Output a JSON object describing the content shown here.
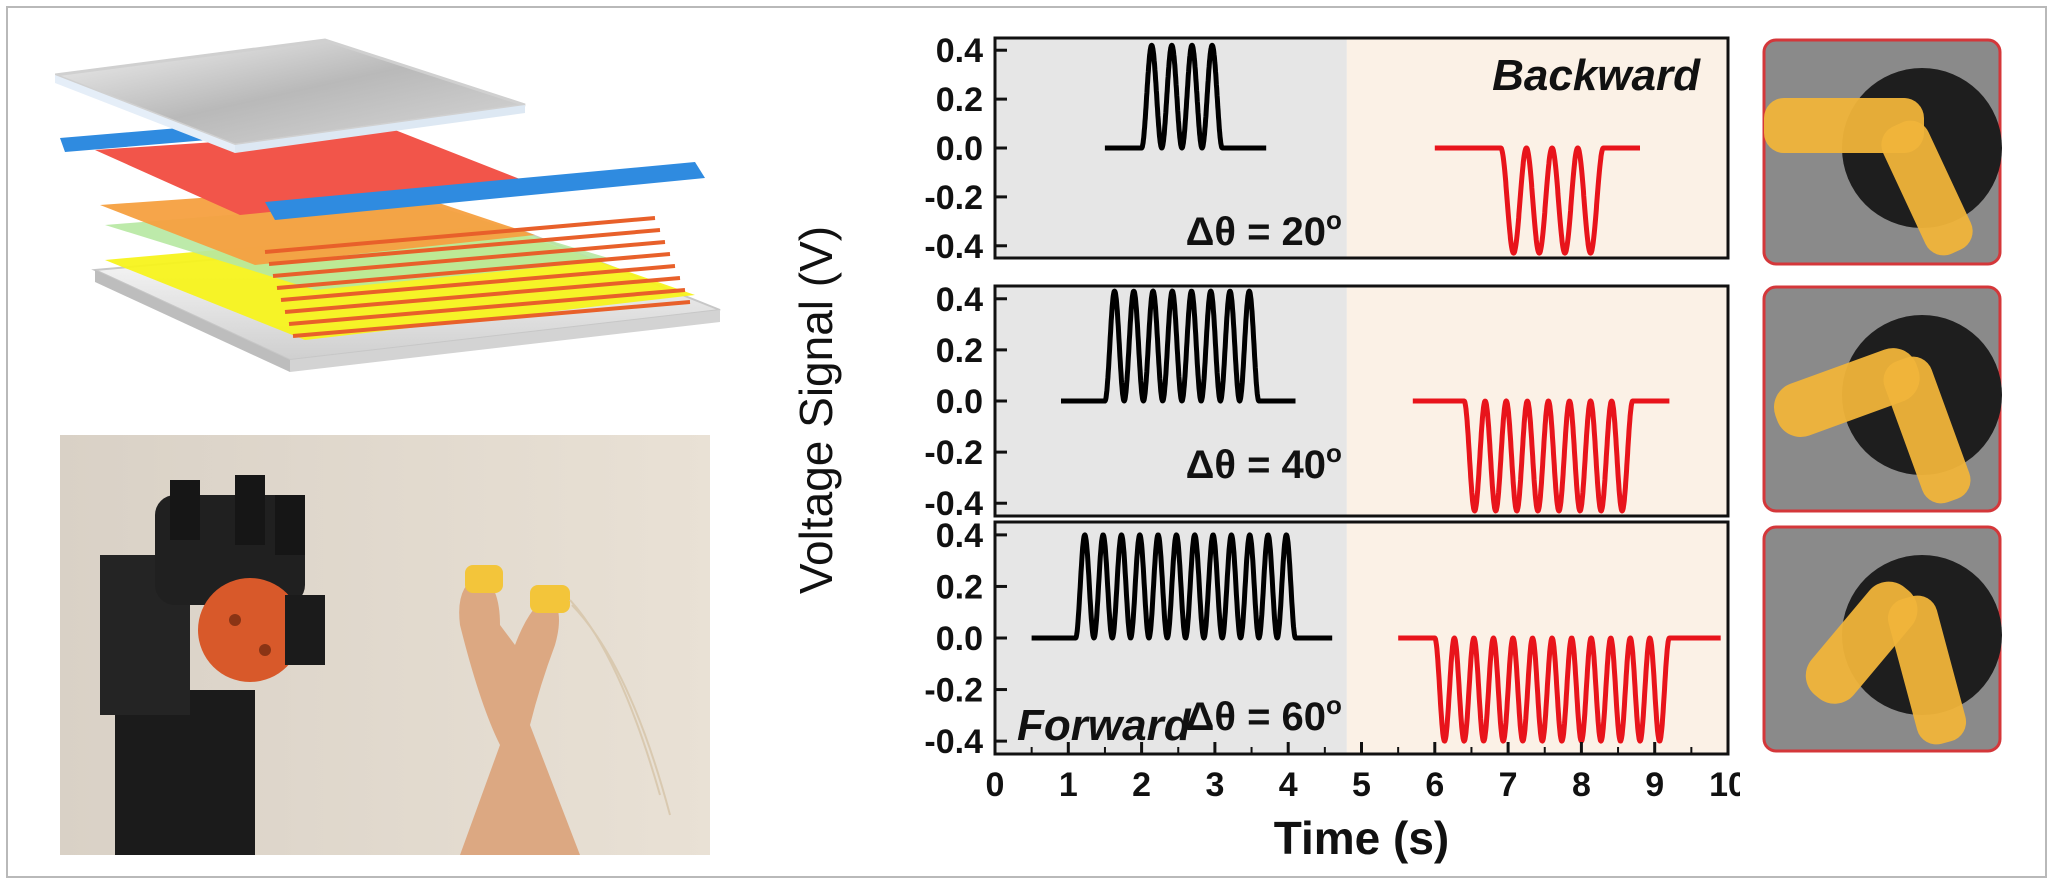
{
  "chart_data": {
    "type": "line",
    "xlabel": "Time (s)",
    "ylabel": "Voltage Signal (V)",
    "xlim": [
      0,
      10
    ],
    "ylim": [
      -0.45,
      0.45
    ],
    "x_ticks": [
      "0",
      "1",
      "2",
      "3",
      "4",
      "5",
      "6",
      "7",
      "8",
      "9",
      "10"
    ],
    "y_ticks": [
      "0.4",
      "0.2",
      "0.0",
      "-0.2",
      "-0.4"
    ],
    "shaded_regions": [
      {
        "x_range": [
          0,
          4.8
        ],
        "color": "#e6e6e6"
      },
      {
        "x_range": [
          4.8,
          10
        ],
        "color": "#fbf1e6"
      }
    ],
    "panels": [
      {
        "angle_label": "Δθ = 20",
        "angle_superscript": "o",
        "direction_label": "Backward",
        "series": [
          {
            "color": "#000000",
            "x_start": 1.5,
            "x_end": 3.7,
            "osc_start": 2.0,
            "osc_end": 3.1,
            "cycles": 4,
            "baseline": 0.0,
            "amplitude": 0.42,
            "direction": "up"
          },
          {
            "color": "#e8141b",
            "x_start": 6.0,
            "x_end": 8.8,
            "osc_start": 6.9,
            "osc_end": 8.3,
            "cycles": 4,
            "baseline": 0.0,
            "amplitude": -0.43,
            "direction": "down"
          }
        ]
      },
      {
        "angle_label": "Δθ = 40",
        "angle_superscript": "o",
        "direction_label": "",
        "series": [
          {
            "color": "#000000",
            "x_start": 0.9,
            "x_end": 4.1,
            "osc_start": 1.5,
            "osc_end": 3.6,
            "cycles": 8,
            "baseline": 0.0,
            "amplitude": 0.43,
            "direction": "up"
          },
          {
            "color": "#e8141b",
            "x_start": 5.7,
            "x_end": 9.2,
            "osc_start": 6.4,
            "osc_end": 8.7,
            "cycles": 8,
            "baseline": 0.0,
            "amplitude": -0.43,
            "direction": "down"
          }
        ]
      },
      {
        "angle_label": "Δθ = 60",
        "angle_superscript": "o",
        "direction_label": "Forward",
        "series": [
          {
            "color": "#000000",
            "x_start": 0.5,
            "x_end": 4.6,
            "osc_start": 1.1,
            "osc_end": 4.1,
            "cycles": 12,
            "baseline": 0.0,
            "amplitude": 0.4,
            "direction": "up"
          },
          {
            "color": "#e8141b",
            "x_start": 5.5,
            "x_end": 9.9,
            "osc_start": 6.0,
            "osc_end": 9.2,
            "cycles": 12,
            "baseline": 0.0,
            "amplitude": -0.4,
            "direction": "down"
          }
        ]
      }
    ]
  }
}
